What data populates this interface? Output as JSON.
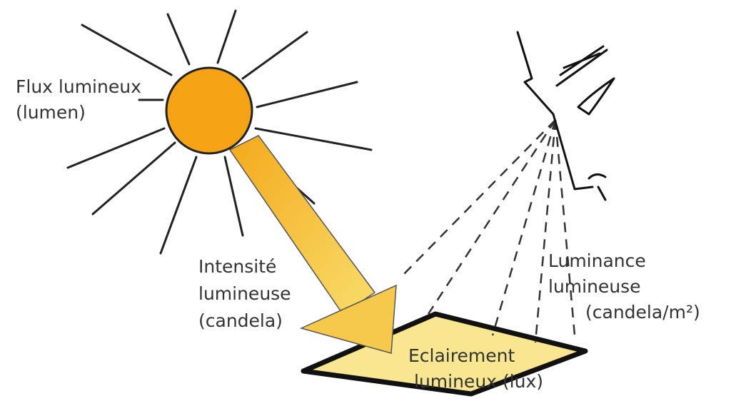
{
  "labels": {
    "flux": [
      "Flux lumineux",
      "(lumen)"
    ],
    "intensity": [
      "Intensité",
      "lumineuse",
      "(candela)"
    ],
    "luminance": [
      "Luminance",
      "lumineuse",
      "(candela/m²)"
    ],
    "illuminance": [
      "Eclairement",
      "lumineux (lux)"
    ]
  }
}
